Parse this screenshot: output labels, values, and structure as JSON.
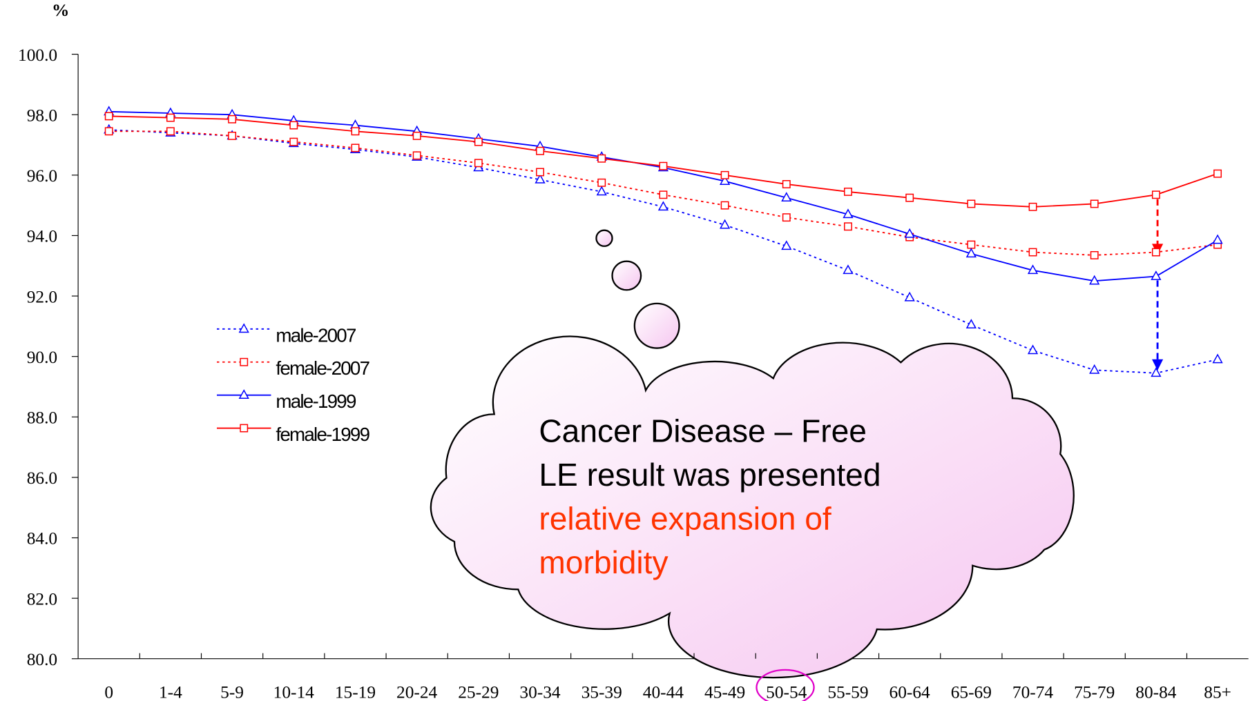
{
  "chart_data": {
    "type": "line",
    "y_label": "%",
    "categories": [
      "0",
      "1-4",
      "5-9",
      "10-14",
      "15-19",
      "20-24",
      "25-29",
      "30-34",
      "35-39",
      "40-44",
      "45-49",
      "50-54",
      "55-59",
      "60-64",
      "65-69",
      "70-74",
      "75-79",
      "80-84",
      "85+"
    ],
    "series": [
      {
        "name": "male-2007",
        "color": "#0000ff",
        "dashed": true,
        "marker": "triangle",
        "values": [
          97.5,
          97.4,
          97.3,
          97.05,
          96.85,
          96.6,
          96.25,
          95.85,
          95.45,
          94.95,
          94.35,
          93.65,
          92.85,
          91.95,
          91.05,
          90.2,
          89.55,
          89.45,
          89.9
        ]
      },
      {
        "name": "female-2007",
        "color": "#ff0000",
        "dashed": true,
        "marker": "square",
        "values": [
          97.45,
          97.45,
          97.3,
          97.1,
          96.9,
          96.65,
          96.4,
          96.1,
          95.75,
          95.35,
          95.0,
          94.6,
          94.3,
          93.95,
          93.7,
          93.45,
          93.35,
          93.45,
          93.7
        ]
      },
      {
        "name": "male-1999",
        "color": "#0000ff",
        "dashed": false,
        "marker": "triangle",
        "values": [
          98.1,
          98.05,
          98.0,
          97.8,
          97.65,
          97.45,
          97.2,
          96.95,
          96.6,
          96.25,
          95.8,
          95.25,
          94.7,
          94.05,
          93.4,
          92.85,
          92.5,
          92.65,
          93.85
        ]
      },
      {
        "name": "female-1999",
        "color": "#ff0000",
        "dashed": false,
        "marker": "square",
        "values": [
          97.95,
          97.9,
          97.85,
          97.65,
          97.45,
          97.3,
          97.1,
          96.8,
          96.55,
          96.3,
          96.0,
          95.7,
          95.45,
          95.25,
          95.05,
          94.95,
          95.05,
          95.35,
          96.05
        ]
      }
    ],
    "ylim": [
      80,
      100
    ],
    "yticks": [
      {
        "value": 80,
        "label": "80.0"
      },
      {
        "value": 82,
        "label": "82.0"
      },
      {
        "value": 84,
        "label": "84.0"
      },
      {
        "value": 86,
        "label": "86.0"
      },
      {
        "value": 88,
        "label": "88.0"
      },
      {
        "value": 90,
        "label": "90.0"
      },
      {
        "value": 92,
        "label": "92.0"
      },
      {
        "value": 94,
        "label": "94.0"
      },
      {
        "value": 96,
        "label": "96.0"
      },
      {
        "value": 98,
        "label": "98.0"
      },
      {
        "value": 100,
        "label": "100.0"
      }
    ],
    "grid": false,
    "annotation": [
      {
        "text": "Cancer Disease – Free",
        "color": "#000000"
      },
      {
        "text": "LE result was presented",
        "color": "#000000"
      },
      {
        "text": "relative expansion of",
        "color": "#ff3300"
      },
      {
        "text": "morbidity",
        "color": "#ff3300"
      }
    ]
  }
}
